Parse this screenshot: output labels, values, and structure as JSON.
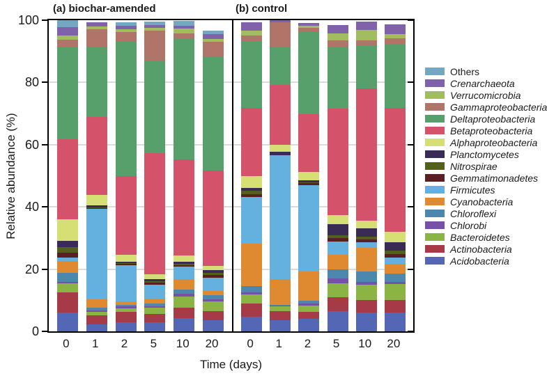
{
  "figure": {
    "panels": [
      {
        "id": "a",
        "title": "(a) biochar-amended"
      },
      {
        "id": "b",
        "title": "(b) control"
      }
    ],
    "y_axis": {
      "label": "Relative abundance (%)",
      "ticks": [
        0,
        20,
        40,
        60,
        80,
        100
      ],
      "max": 100
    },
    "x_axis": {
      "label": "Time (days)",
      "categories": [
        "0",
        "1",
        "2",
        "5",
        "10",
        "20"
      ]
    }
  },
  "chart_data": {
    "type": "bar",
    "stacked": true,
    "unit": "relative abundance (%)",
    "title": "",
    "xlabel": "Time (days)",
    "ylabel": "Relative abundance (%)",
    "ylim": [
      0,
      100
    ],
    "gridlines": [
      20,
      40,
      60,
      80
    ],
    "legend_position": "right",
    "categories": [
      "0",
      "1",
      "2",
      "5",
      "10",
      "20"
    ],
    "panel_keys": {
      "a": "biochar_amended",
      "b": "control"
    },
    "stack_note": "series listed bottom-to-top in stacking order; legend shown in reverse order",
    "series": [
      {
        "name": "Acidobacteria",
        "color": "#5367b4",
        "italic": true,
        "values": {
          "biochar_amended": [
            6.0,
            2.2,
            2.9,
            3.0,
            4.2,
            3.6
          ],
          "control": [
            4.8,
            3.6,
            4.0,
            6.5,
            6.0,
            6.0
          ]
        }
      },
      {
        "name": "Actinobacteria",
        "color": "#a63a46",
        "italic": true,
        "values": {
          "biochar_amended": [
            6.5,
            2.9,
            3.4,
            2.5,
            3.3,
            3.0
          ],
          "control": [
            4.1,
            3.0,
            2.2,
            4.5,
            4.0,
            4.0
          ]
        }
      },
      {
        "name": "Bacteroidetes",
        "color": "#8ab545",
        "italic": true,
        "values": {
          "biochar_amended": [
            3.0,
            1.2,
            1.2,
            2.2,
            3.6,
            3.0
          ],
          "control": [
            3.0,
            1.5,
            2.1,
            4.4,
            4.9,
            5.3
          ]
        }
      },
      {
        "name": "Chlorobi",
        "color": "#7751a8",
        "italic": true,
        "values": {
          "biochar_amended": [
            0.5,
            0.5,
            0.5,
            0.3,
            0.9,
            0.7
          ],
          "control": [
            0.7,
            0.2,
            0.7,
            1.5,
            1.1,
            0.7
          ]
        }
      },
      {
        "name": "Chloroflexi",
        "color": "#4c87ae",
        "italic": true,
        "values": {
          "biochar_amended": [
            2.8,
            0.9,
            0.6,
            1.0,
            1.5,
            1.3
          ],
          "control": [
            1.9,
            0.3,
            0.9,
            3.0,
            3.3,
            2.6
          ]
        }
      },
      {
        "name": "Cyanobacteria",
        "color": "#df8a30",
        "italic": true,
        "values": {
          "biochar_amended": [
            3.7,
            2.6,
            1.1,
            1.5,
            3.3,
            1.4
          ],
          "control": [
            13.8,
            8.2,
            9.3,
            4.8,
            7.5,
            3.0
          ]
        }
      },
      {
        "name": "Firmicutes",
        "color": "#64b1e0",
        "italic": true,
        "values": {
          "biochar_amended": [
            1.2,
            29.0,
            11.6,
            4.5,
            4.1,
            4.3
          ],
          "control": [
            14.8,
            39.8,
            27.9,
            4.1,
            1.9,
            2.2
          ]
        }
      },
      {
        "name": "Gemmatimonadetes",
        "color": "#5a1f22",
        "italic": true,
        "values": {
          "biochar_amended": [
            1.7,
            0.3,
            0.4,
            0.6,
            0.4,
            0.8
          ],
          "control": [
            1.0,
            0.0,
            0.5,
            1.1,
            0.9,
            1.1
          ]
        }
      },
      {
        "name": "Nitrospirae",
        "color": "#535f1d",
        "italic": true,
        "values": {
          "biochar_amended": [
            1.6,
            0.3,
            0.3,
            0.5,
            0.4,
            0.6
          ],
          "control": [
            1.0,
            0.0,
            0.4,
            1.1,
            0.9,
            1.1
          ]
        }
      },
      {
        "name": "Planctomycetes",
        "color": "#3a2b55",
        "italic": true,
        "values": {
          "biochar_amended": [
            2.2,
            0.6,
            0.4,
            0.7,
            0.7,
            1.0
          ],
          "control": [
            1.0,
            1.1,
            0.6,
            3.4,
            2.6,
            2.7
          ]
        }
      },
      {
        "name": "Alphaproteobacteria",
        "color": "#d6df73",
        "italic": true,
        "values": {
          "biochar_amended": [
            6.8,
            3.3,
            2.2,
            1.5,
            1.9,
            1.3
          ],
          "control": [
            3.7,
            2.2,
            2.6,
            3.0,
            2.6,
            3.3
          ]
        }
      },
      {
        "name": "Betaproteobacteria",
        "color": "#d5536a",
        "italic": true,
        "values": {
          "biochar_amended": [
            25.7,
            25.2,
            25.2,
            39.0,
            30.9,
            30.7
          ],
          "control": [
            22.1,
            19.4,
            18.7,
            34.2,
            42.5,
            39.8
          ]
        }
      },
      {
        "name": "Deltaproteobacteria",
        "color": "#57a06c",
        "italic": true,
        "values": {
          "biochar_amended": [
            29.8,
            22.6,
            43.2,
            29.8,
            39.0,
            36.6
          ],
          "control": [
            21.4,
            11.9,
            26.4,
            19.7,
            13.5,
            20.4
          ]
        }
      },
      {
        "name": "Gammaproteobacteria",
        "color": "#b07468",
        "italic": true,
        "values": {
          "biochar_amended": [
            2.2,
            5.6,
            3.3,
            9.6,
            1.5,
            4.9
          ],
          "control": [
            1.9,
            8.2,
            1.2,
            2.2,
            1.9,
            1.9
          ]
        }
      },
      {
        "name": "Verrucomicrobia",
        "color": "#a2bd60",
        "italic": true,
        "values": {
          "biochar_amended": [
            1.5,
            0.8,
            0.8,
            0.8,
            1.7,
            0.9
          ],
          "control": [
            1.5,
            0.0,
            0.8,
            2.3,
            3.3,
            1.5
          ]
        }
      },
      {
        "name": "Crenarchaeota",
        "color": "#8062aa",
        "italic": true,
        "values": {
          "biochar_amended": [
            2.6,
            1.3,
            1.1,
            0.9,
            0.9,
            1.5
          ],
          "control": [
            2.7,
            0.7,
            0.9,
            2.6,
            2.6,
            3.0
          ]
        }
      },
      {
        "name": "Others",
        "color": "#75a7c3",
        "italic": false,
        "values": {
          "biochar_amended": [
            2.2,
            0.0,
            1.1,
            1.2,
            1.5,
            1.1
          ],
          "control": [
            0.0,
            0.0,
            0.0,
            0.0,
            0.0,
            0.0
          ]
        }
      }
    ]
  }
}
